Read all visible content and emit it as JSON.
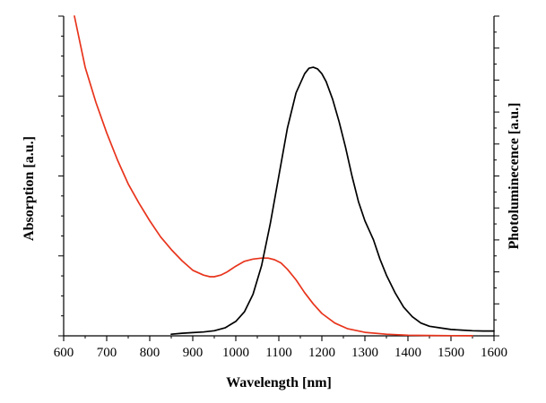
{
  "chart_data": {
    "type": "line",
    "title": "",
    "xlabel": "Wavelength [nm]",
    "ylabel_left": "Absorption [a.u.]",
    "ylabel_right": "Photoluminecence [a.u.]",
    "xlim": [
      600,
      1600
    ],
    "ylim": [
      0,
      1
    ],
    "xticks": [
      "600",
      "700",
      "800",
      "900",
      "1000",
      "1100",
      "1200",
      "1300",
      "1400",
      "1500",
      "1600"
    ],
    "left_minor_tick_count": 16,
    "right_minor_tick_count": 20,
    "grid": false,
    "legend": "none",
    "series": [
      {
        "color": "#e8341c",
        "axis": "left",
        "x": [
          625,
          650,
          675,
          700,
          725,
          750,
          775,
          800,
          825,
          850,
          875,
          900,
          925,
          940,
          950,
          965,
          980,
          1000,
          1020,
          1040,
          1060,
          1075,
          1090,
          1105,
          1120,
          1140,
          1160,
          1180,
          1200,
          1230,
          1260,
          1300,
          1350,
          1400,
          1450,
          1500,
          1550
        ],
        "y": [
          1.0,
          0.84,
          0.73,
          0.635,
          0.55,
          0.475,
          0.415,
          0.36,
          0.31,
          0.27,
          0.235,
          0.205,
          0.19,
          0.185,
          0.185,
          0.19,
          0.2,
          0.218,
          0.233,
          0.24,
          0.243,
          0.243,
          0.238,
          0.228,
          0.208,
          0.175,
          0.135,
          0.1,
          0.07,
          0.04,
          0.022,
          0.011,
          0.005,
          0.002,
          0.001,
          0.0005,
          0.0003
        ]
      },
      {
        "color": "#000000",
        "axis": "right",
        "x": [
          850,
          875,
          900,
          925,
          950,
          975,
          1000,
          1020,
          1040,
          1060,
          1080,
          1100,
          1120,
          1140,
          1160,
          1170,
          1180,
          1190,
          1200,
          1210,
          1225,
          1240,
          1255,
          1270,
          1285,
          1300,
          1310,
          1320,
          1335,
          1350,
          1370,
          1390,
          1410,
          1430,
          1450,
          1475,
          1500,
          1525,
          1550,
          1575,
          1600
        ],
        "y": [
          0.005,
          0.008,
          0.01,
          0.012,
          0.016,
          0.025,
          0.045,
          0.075,
          0.13,
          0.22,
          0.35,
          0.5,
          0.65,
          0.76,
          0.82,
          0.837,
          0.84,
          0.835,
          0.82,
          0.795,
          0.74,
          0.67,
          0.59,
          0.5,
          0.42,
          0.36,
          0.33,
          0.3,
          0.24,
          0.19,
          0.135,
          0.09,
          0.06,
          0.04,
          0.03,
          0.025,
          0.02,
          0.018,
          0.016,
          0.015,
          0.015
        ]
      }
    ]
  }
}
